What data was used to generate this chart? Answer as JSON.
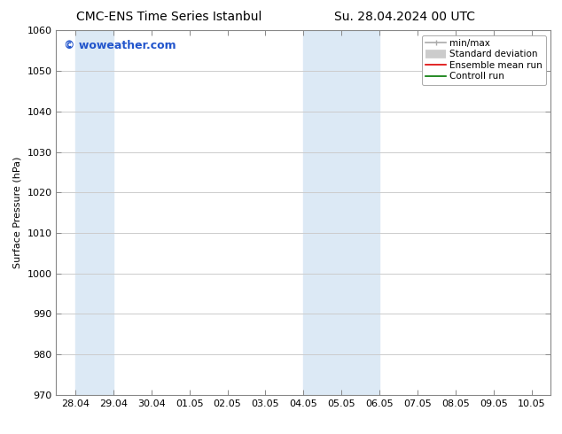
{
  "title_left": "CMC-ENS Time Series Istanbul",
  "title_right": "Su. 28.04.2024 00 UTC",
  "ylabel": "Surface Pressure (hPa)",
  "ylim": [
    970,
    1060
  ],
  "yticks": [
    970,
    980,
    990,
    1000,
    1010,
    1020,
    1030,
    1040,
    1050,
    1060
  ],
  "xtick_labels": [
    "28.04",
    "29.04",
    "30.04",
    "01.05",
    "02.05",
    "03.05",
    "04.05",
    "05.05",
    "06.05",
    "07.05",
    "08.05",
    "09.05",
    "10.05"
  ],
  "shaded_region1": [
    0,
    1.0
  ],
  "shaded_region2": [
    6.0,
    8.0
  ],
  "shaded_color": "#dce9f5",
  "watermark_text": "© woweather.com",
  "watermark_color": "#2255cc",
  "legend_items": [
    {
      "label": "min/max",
      "color": "#aaaaaa",
      "lw": 1.2
    },
    {
      "label": "Standard deviation",
      "color": "#cccccc",
      "lw": 7
    },
    {
      "label": "Ensemble mean run",
      "color": "#dd0000",
      "lw": 1.2
    },
    {
      "label": "Controll run",
      "color": "#007700",
      "lw": 1.2
    }
  ],
  "bg_color": "#ffffff",
  "plot_bg_color": "#ffffff",
  "grid_color": "#cccccc",
  "title_fontsize": 10,
  "ylabel_fontsize": 8,
  "tick_fontsize": 8,
  "legend_fontsize": 7.5,
  "watermark_fontsize": 9,
  "xlim": [
    -0.5,
    12.5
  ],
  "num_xticks": 13
}
